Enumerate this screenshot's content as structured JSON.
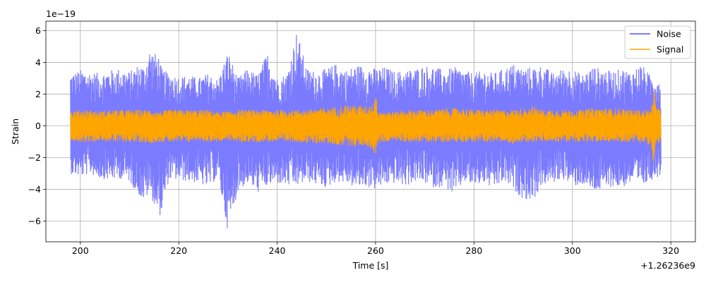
{
  "chart_data": {
    "type": "line",
    "title": "",
    "xlabel": "Time [s]",
    "ylabel": "Strain",
    "x_offset_label": "+1.26236e9",
    "y_scale_label": "1e−19",
    "xlim": [
      193,
      325
    ],
    "ylim": [
      -7.3,
      6.6
    ],
    "x_ticks": [
      200,
      220,
      240,
      260,
      280,
      300,
      320
    ],
    "x_tick_labels": [
      "200",
      "220",
      "240",
      "260",
      "280",
      "300",
      "320"
    ],
    "y_ticks": [
      -6,
      -4,
      -2,
      0,
      2,
      4,
      6
    ],
    "y_tick_labels": [
      "−6",
      "−4",
      "−2",
      "0",
      "2",
      "4",
      "6"
    ],
    "grid": true,
    "legend": {
      "position": "top-right"
    },
    "series": [
      {
        "name": "Noise",
        "color": "#7b7bff",
        "x": [
          198,
          200,
          202,
          204,
          206,
          208,
          210,
          212,
          213,
          214,
          216,
          216.5,
          218,
          220,
          222,
          224,
          226,
          228,
          230,
          232,
          234,
          236,
          238,
          240,
          242,
          244,
          246,
          248,
          250,
          252,
          254,
          256,
          258,
          260,
          262,
          264,
          266,
          268,
          270,
          272,
          274,
          276,
          278,
          280,
          282,
          284,
          286,
          288,
          290,
          292,
          294,
          296,
          298,
          300,
          302,
          304,
          306,
          308,
          310,
          312,
          314,
          316,
          318
        ],
        "max": [
          3.3,
          3.5,
          3.4,
          3.3,
          3.5,
          3.6,
          3.4,
          3.9,
          3.7,
          4.8,
          4.4,
          3.6,
          3.3,
          3.1,
          3.2,
          3.0,
          3.3,
          2.9,
          4.7,
          3.0,
          3.6,
          3.2,
          4.6,
          3.0,
          3.3,
          6.0,
          3.6,
          3.4,
          3.6,
          3.9,
          3.5,
          3.8,
          3.8,
          3.6,
          3.7,
          3.4,
          3.5,
          3.6,
          3.8,
          3.7,
          3.5,
          3.7,
          3.5,
          3.3,
          3.5,
          3.3,
          3.6,
          3.9,
          3.6,
          3.7,
          3.8,
          3.3,
          3.6,
          3.6,
          3.2,
          3.7,
          3.6,
          3.4,
          3.6,
          3.4,
          3.9,
          3.1,
          3.0
        ],
        "min": [
          -3.0,
          -3.2,
          -3.0,
          -3.3,
          -3.4,
          -3.3,
          -3.5,
          -4.4,
          -4.8,
          -4.2,
          -5.7,
          -5.5,
          -3.4,
          -3.4,
          -3.5,
          -3.6,
          -3.9,
          -3.2,
          -6.7,
          -4.1,
          -3.6,
          -4.2,
          -3.8,
          -3.6,
          -3.8,
          -3.8,
          -3.5,
          -3.7,
          -3.9,
          -3.5,
          -3.6,
          -3.9,
          -3.8,
          -4.0,
          -3.7,
          -3.6,
          -3.8,
          -3.5,
          -3.6,
          -3.9,
          -3.8,
          -4.4,
          -3.5,
          -3.8,
          -3.6,
          -4.0,
          -3.5,
          -4.0,
          -4.6,
          -4.7,
          -3.7,
          -3.6,
          -3.3,
          -3.8,
          -3.7,
          -4.1,
          -4.1,
          -3.8,
          -3.9,
          -3.6,
          -3.9,
          -3.4,
          -3.1
        ]
      },
      {
        "name": "Signal",
        "color": "#ffa500",
        "x": [
          198,
          200,
          202,
          204,
          206,
          208,
          210,
          212,
          214,
          216,
          218,
          220,
          222,
          224,
          226,
          228,
          230,
          232,
          234,
          236,
          238,
          240,
          242,
          244,
          246,
          248,
          250,
          252,
          254,
          256,
          258,
          259.5,
          260,
          260.5,
          262,
          264,
          266,
          268,
          270,
          272,
          274,
          276,
          278,
          280,
          282,
          284,
          286,
          288,
          290,
          292,
          294,
          296,
          298,
          300,
          302,
          304,
          306,
          308,
          310,
          312,
          314,
          316,
          316.5,
          317,
          318
        ],
        "max": [
          0.9,
          1.0,
          1.0,
          0.9,
          1.0,
          1.0,
          1.0,
          1.0,
          1.0,
          0.9,
          1.0,
          1.0,
          1.0,
          1.0,
          1.0,
          0.9,
          0.9,
          1.0,
          1.0,
          1.0,
          1.0,
          1.0,
          1.0,
          1.0,
          1.0,
          1.1,
          1.1,
          1.2,
          1.3,
          1.3,
          1.2,
          1.4,
          2.2,
          1.0,
          0.9,
          0.9,
          1.0,
          1.0,
          1.0,
          1.0,
          1.1,
          1.1,
          1.1,
          1.0,
          1.0,
          1.0,
          1.0,
          1.0,
          1.1,
          1.2,
          1.0,
          1.0,
          1.0,
          1.0,
          1.0,
          1.1,
          1.1,
          1.1,
          1.1,
          1.0,
          1.0,
          1.0,
          2.5,
          1.2,
          1.0
        ],
        "min": [
          -0.9,
          -1.0,
          -1.0,
          -0.9,
          -1.0,
          -1.0,
          -1.0,
          -1.0,
          -1.1,
          -1.0,
          -1.0,
          -1.0,
          -1.0,
          -0.9,
          -1.0,
          -1.0,
          -0.9,
          -1.0,
          -1.0,
          -1.0,
          -1.0,
          -1.0,
          -1.0,
          -1.0,
          -1.1,
          -1.1,
          -1.1,
          -1.2,
          -1.2,
          -1.3,
          -1.2,
          -1.6,
          -1.9,
          -1.1,
          -1.0,
          -0.9,
          -1.0,
          -1.0,
          -1.0,
          -1.0,
          -1.0,
          -1.0,
          -1.0,
          -1.0,
          -1.0,
          -1.0,
          -1.0,
          -1.1,
          -1.0,
          -1.0,
          -1.0,
          -1.0,
          -1.0,
          -1.0,
          -1.0,
          -1.0,
          -1.0,
          -1.0,
          -1.0,
          -1.0,
          -1.1,
          -1.2,
          -2.8,
          -1.2,
          -1.0
        ]
      }
    ]
  }
}
